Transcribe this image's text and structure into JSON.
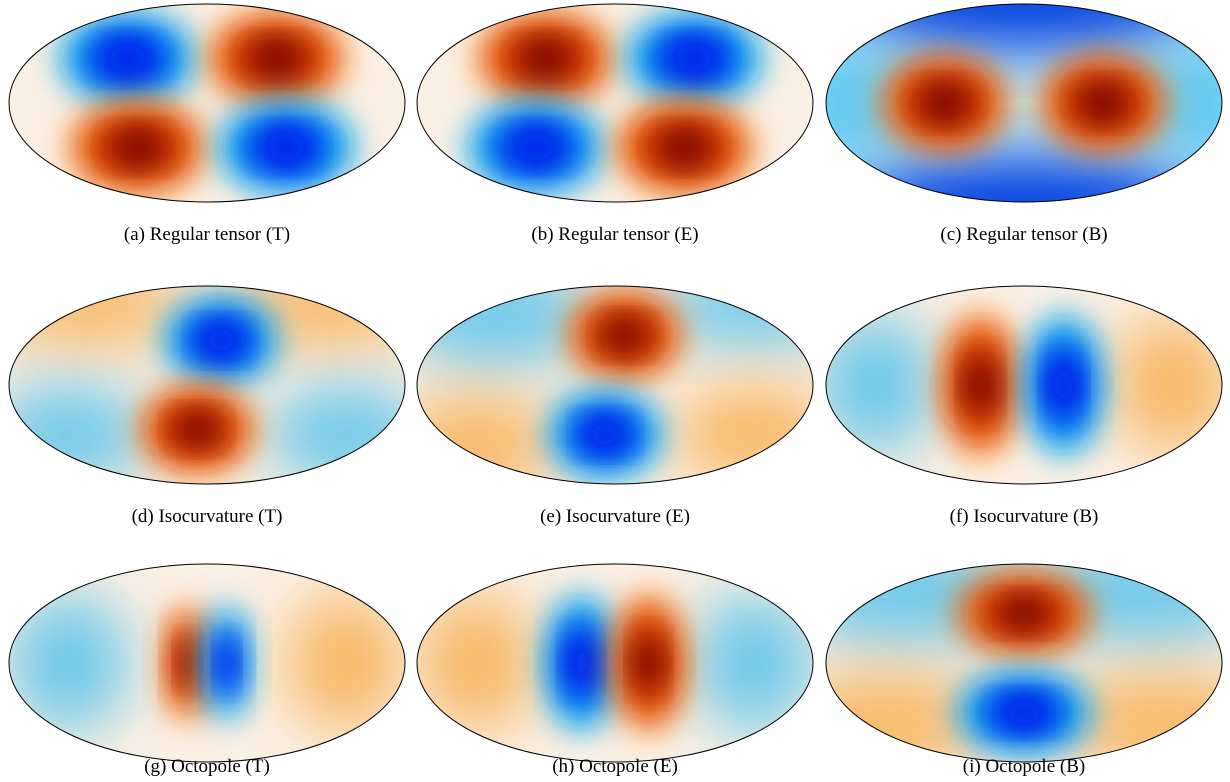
{
  "panels": [
    {
      "caption": "(a) Regular tensor (T)"
    },
    {
      "caption": "(b) Regular tensor (E)"
    },
    {
      "caption": "(c) Regular tensor (B)"
    },
    {
      "caption": "(d) Isocurvature (T)"
    },
    {
      "caption": "(e) Isocurvature (E)"
    },
    {
      "caption": "(f) Isocurvature (B)"
    },
    {
      "caption": "(g) Octopole (T)"
    },
    {
      "caption": "(h) Octopole (E)"
    },
    {
      "caption": "(i) Octopole (B)"
    }
  ]
}
